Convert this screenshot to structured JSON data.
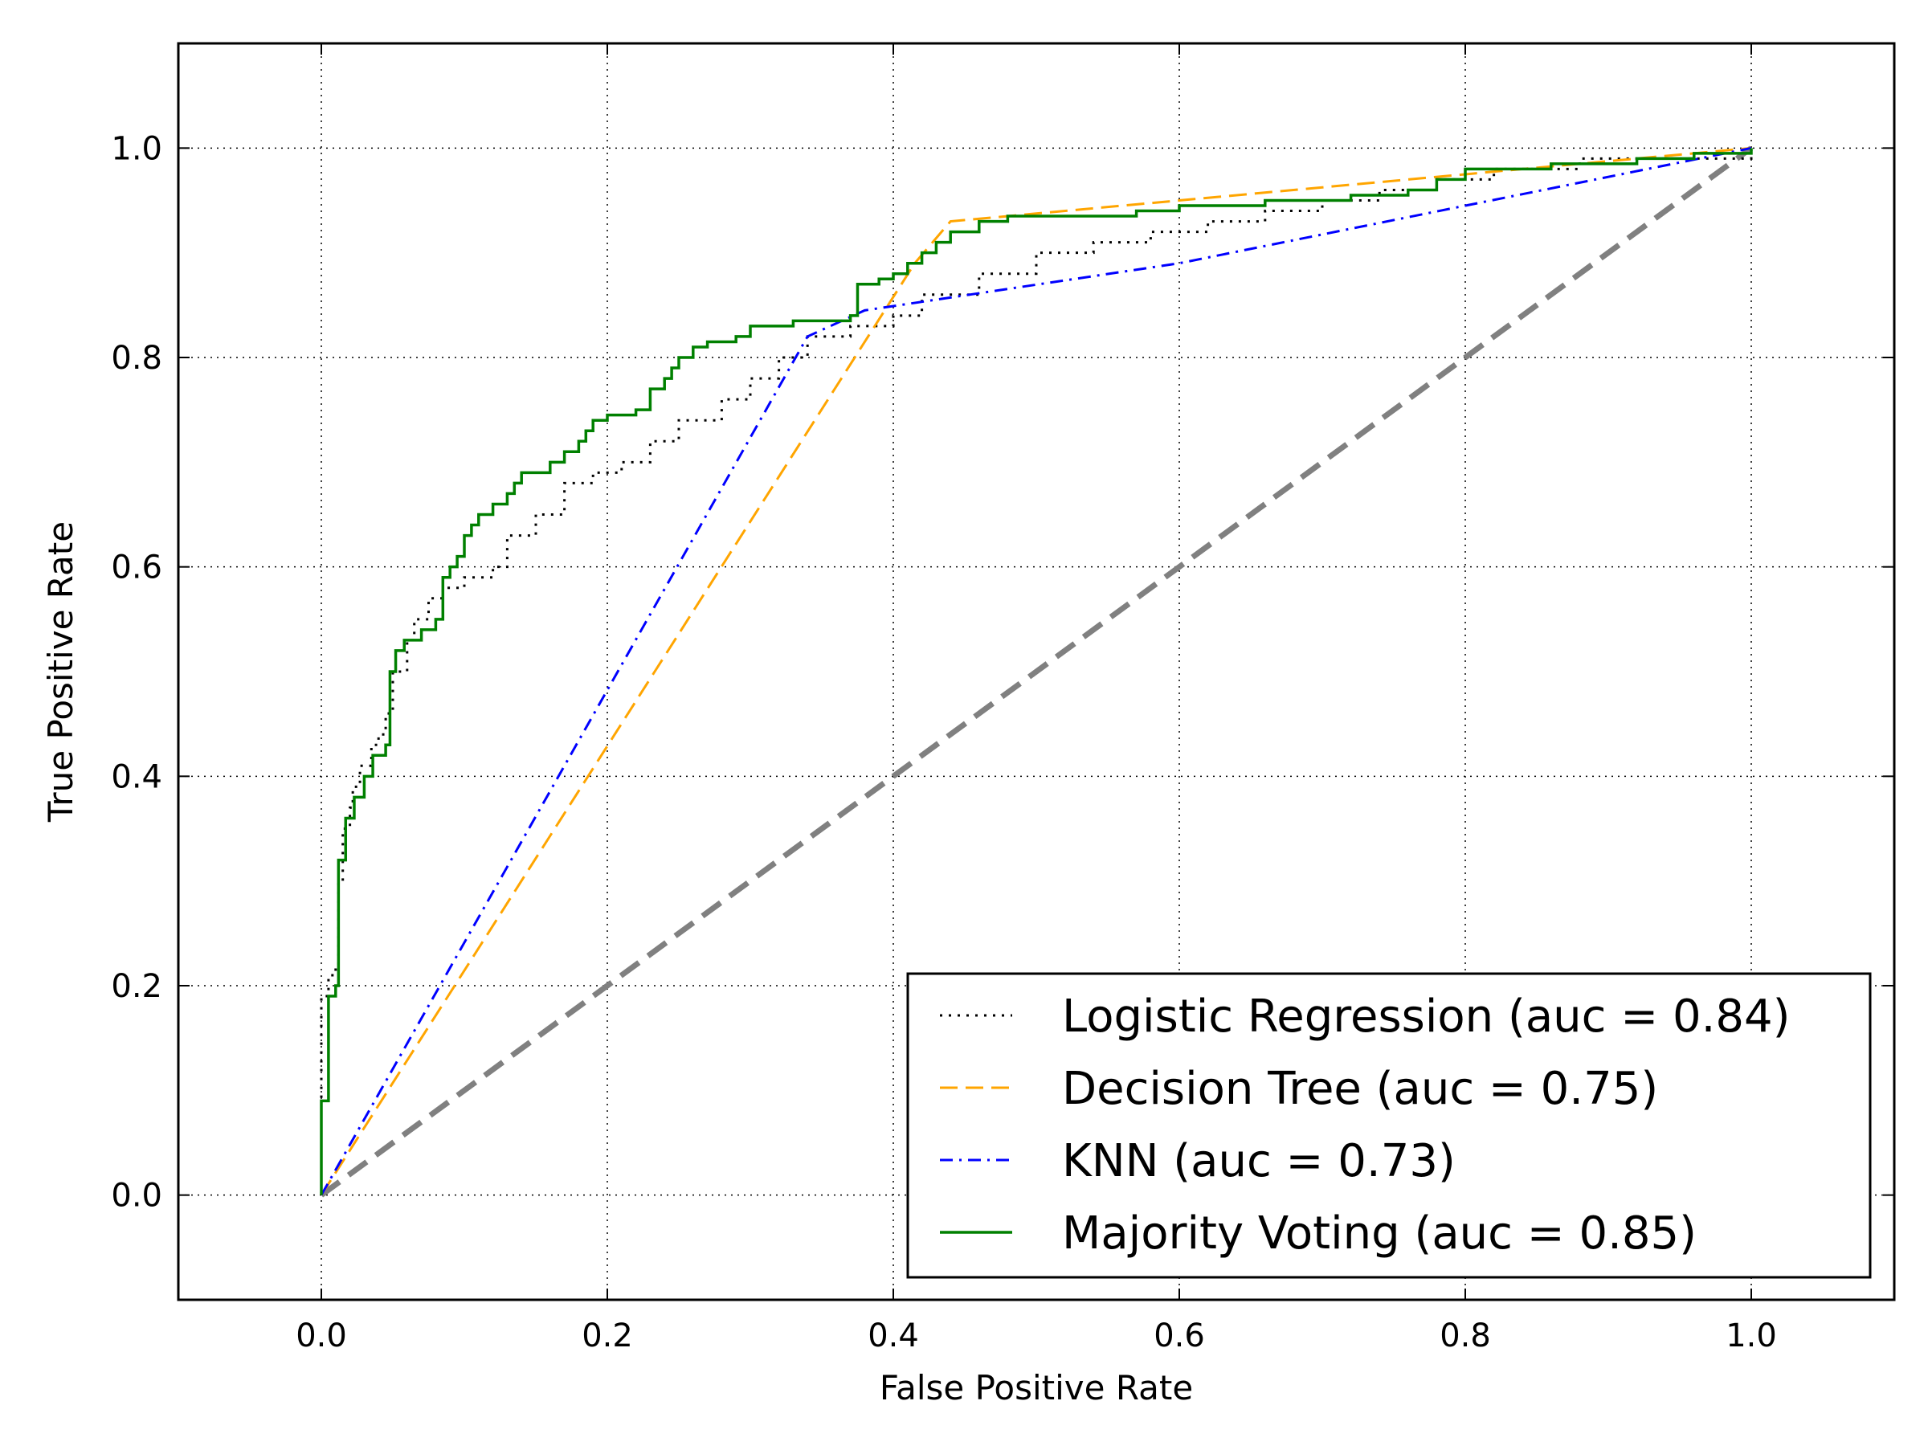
{
  "chart_data": {
    "type": "line",
    "title": "",
    "xlabel": "False Positive Rate",
    "ylabel": "True Positive Rate",
    "xlim": [
      -0.1,
      1.1
    ],
    "ylim": [
      -0.1,
      1.1
    ],
    "xticks": [
      0.0,
      0.2,
      0.4,
      0.6,
      0.8,
      1.0
    ],
    "yticks": [
      0.0,
      0.2,
      0.4,
      0.6,
      0.8,
      1.0
    ],
    "xtick_labels": [
      "0.0",
      "0.2",
      "0.4",
      "0.6",
      "0.8",
      "1.0"
    ],
    "ytick_labels": [
      "0.0",
      "0.2",
      "0.4",
      "0.6",
      "0.8",
      "1.0"
    ],
    "grid": true,
    "legend_position": "lower-right",
    "series": [
      {
        "name": "Logistic Regression (auc = 0.84)",
        "color": "#000000",
        "style": "dotted",
        "step": true,
        "points": [
          [
            0,
            0
          ],
          [
            0,
            0.19
          ],
          [
            0.005,
            0.21
          ],
          [
            0.01,
            0.22
          ],
          [
            0.012,
            0.3
          ],
          [
            0.015,
            0.35
          ],
          [
            0.02,
            0.37
          ],
          [
            0.022,
            0.39
          ],
          [
            0.027,
            0.41
          ],
          [
            0.035,
            0.43
          ],
          [
            0.04,
            0.44
          ],
          [
            0.045,
            0.46
          ],
          [
            0.05,
            0.5
          ],
          [
            0.06,
            0.53
          ],
          [
            0.065,
            0.55
          ],
          [
            0.075,
            0.57
          ],
          [
            0.085,
            0.58
          ],
          [
            0.1,
            0.59
          ],
          [
            0.12,
            0.6
          ],
          [
            0.13,
            0.63
          ],
          [
            0.15,
            0.65
          ],
          [
            0.17,
            0.68
          ],
          [
            0.19,
            0.69
          ],
          [
            0.21,
            0.7
          ],
          [
            0.23,
            0.72
          ],
          [
            0.25,
            0.74
          ],
          [
            0.28,
            0.76
          ],
          [
            0.3,
            0.78
          ],
          [
            0.32,
            0.8
          ],
          [
            0.34,
            0.82
          ],
          [
            0.37,
            0.83
          ],
          [
            0.4,
            0.84
          ],
          [
            0.42,
            0.86
          ],
          [
            0.46,
            0.88
          ],
          [
            0.5,
            0.9
          ],
          [
            0.54,
            0.91
          ],
          [
            0.58,
            0.92
          ],
          [
            0.62,
            0.93
          ],
          [
            0.66,
            0.94
          ],
          [
            0.7,
            0.95
          ],
          [
            0.74,
            0.96
          ],
          [
            0.78,
            0.97
          ],
          [
            0.82,
            0.98
          ],
          [
            0.88,
            0.99
          ],
          [
            0.94,
            0.99
          ],
          [
            1.0,
            1.0
          ]
        ]
      },
      {
        "name": "Decision Tree (auc = 0.75)",
        "color": "#ffa500",
        "style": "dashed",
        "step": false,
        "points": [
          [
            0,
            0
          ],
          [
            0.415,
            0.89
          ],
          [
            0.44,
            0.93
          ],
          [
            1.0,
            1.0
          ]
        ]
      },
      {
        "name": "KNN (auc = 0.73)",
        "color": "#0000ff",
        "style": "dashdot",
        "step": false,
        "points": [
          [
            0,
            0
          ],
          [
            0.34,
            0.82
          ],
          [
            0.38,
            0.845
          ],
          [
            0.6,
            0.89
          ],
          [
            1.0,
            1.0
          ]
        ]
      },
      {
        "name": "Majority Voting (auc = 0.85)",
        "color": "#008000",
        "style": "solid",
        "step": true,
        "points": [
          [
            0,
            0
          ],
          [
            0,
            0.09
          ],
          [
            0.005,
            0.19
          ],
          [
            0.01,
            0.2
          ],
          [
            0.012,
            0.32
          ],
          [
            0.017,
            0.36
          ],
          [
            0.023,
            0.38
          ],
          [
            0.03,
            0.4
          ],
          [
            0.036,
            0.42
          ],
          [
            0.045,
            0.43
          ],
          [
            0.048,
            0.5
          ],
          [
            0.052,
            0.52
          ],
          [
            0.058,
            0.53
          ],
          [
            0.07,
            0.54
          ],
          [
            0.08,
            0.55
          ],
          [
            0.085,
            0.59
          ],
          [
            0.09,
            0.6
          ],
          [
            0.095,
            0.61
          ],
          [
            0.1,
            0.63
          ],
          [
            0.105,
            0.64
          ],
          [
            0.11,
            0.65
          ],
          [
            0.12,
            0.66
          ],
          [
            0.13,
            0.67
          ],
          [
            0.135,
            0.68
          ],
          [
            0.14,
            0.69
          ],
          [
            0.16,
            0.7
          ],
          [
            0.17,
            0.71
          ],
          [
            0.18,
            0.72
          ],
          [
            0.185,
            0.73
          ],
          [
            0.19,
            0.74
          ],
          [
            0.2,
            0.745
          ],
          [
            0.22,
            0.75
          ],
          [
            0.23,
            0.77
          ],
          [
            0.24,
            0.78
          ],
          [
            0.245,
            0.79
          ],
          [
            0.25,
            0.8
          ],
          [
            0.26,
            0.81
          ],
          [
            0.27,
            0.815
          ],
          [
            0.29,
            0.82
          ],
          [
            0.3,
            0.83
          ],
          [
            0.33,
            0.835
          ],
          [
            0.37,
            0.84
          ],
          [
            0.375,
            0.87
          ],
          [
            0.39,
            0.875
          ],
          [
            0.4,
            0.88
          ],
          [
            0.41,
            0.89
          ],
          [
            0.42,
            0.9
          ],
          [
            0.43,
            0.91
          ],
          [
            0.44,
            0.92
          ],
          [
            0.46,
            0.93
          ],
          [
            0.48,
            0.935
          ],
          [
            0.57,
            0.94
          ],
          [
            0.6,
            0.945
          ],
          [
            0.66,
            0.95
          ],
          [
            0.72,
            0.955
          ],
          [
            0.76,
            0.96
          ],
          [
            0.78,
            0.97
          ],
          [
            0.8,
            0.98
          ],
          [
            0.86,
            0.985
          ],
          [
            0.92,
            0.99
          ],
          [
            0.96,
            0.995
          ],
          [
            1.0,
            1.0
          ]
        ]
      },
      {
        "name": "",
        "color": "#808080",
        "style": "thick-dashed",
        "step": false,
        "legend": false,
        "points": [
          [
            0,
            0
          ],
          [
            1,
            1
          ]
        ]
      }
    ]
  }
}
